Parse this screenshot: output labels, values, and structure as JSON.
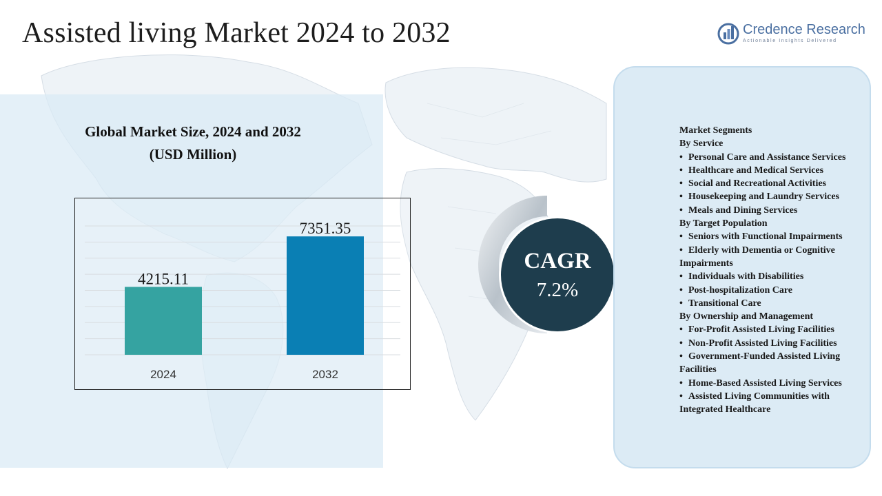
{
  "header": {
    "title": "Assisted living Market 2024 to 2032"
  },
  "logo": {
    "name": "Credence Research",
    "tagline": "Actionable Insights Delivered"
  },
  "chart_title": {
    "line1": "Global Market Size, 2024 and 2032",
    "line2": "(USD Million)"
  },
  "chart_data": {
    "type": "bar",
    "categories": [
      "2024",
      "2032"
    ],
    "values": [
      4215.11,
      7351.35
    ],
    "value_labels": [
      "4215.11",
      "7351.35"
    ],
    "colors": [
      "#35a3a1",
      "#0a7fb4"
    ],
    "title": "Global Market Size, 2024 and 2032 (USD Million)",
    "ylim": [
      0,
      8000
    ],
    "grid": true
  },
  "cagr": {
    "label": "CAGR",
    "value": "7.2%"
  },
  "segments": {
    "heading": "Market Segments",
    "groups": [
      {
        "title": "By Service",
        "items": [
          "Personal Care and Assistance Services",
          "Healthcare and Medical Services",
          "Social and Recreational Activities",
          "Housekeeping and Laundry Services",
          "Meals and Dining Services"
        ]
      },
      {
        "title": "By Target Population",
        "items": [
          "Seniors with Functional Impairments",
          "Elderly with Dementia or Cognitive Impairments",
          "Individuals with Disabilities",
          "Post-hospitalization Care",
          "Transitional  Care"
        ]
      },
      {
        "title": "By Ownership and Management",
        "items": [
          "For-Profit Assisted Living Facilities",
          "Non-Profit Assisted Living Facilities",
          "Government-Funded Assisted Living Facilities",
          "Home-Based Assisted Living Services",
          "Assisted Living Communities with Integrated Healthcare"
        ]
      }
    ]
  },
  "colors": {
    "panel_bg": "#dcebf5",
    "cagr_bg": "#1e3d4d",
    "logo_blue": "#4a6fa1"
  }
}
